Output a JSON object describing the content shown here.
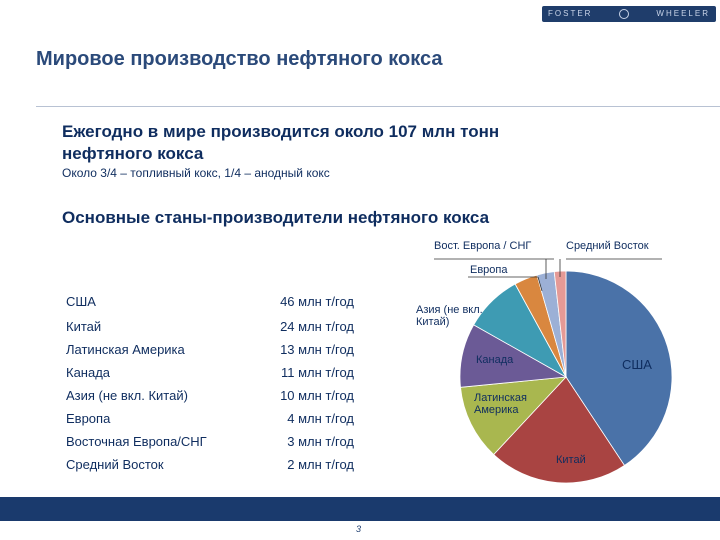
{
  "logo": {
    "left_text": "FOSTER",
    "right_text": "WHEELER"
  },
  "page": {
    "title": "Мировое производство нефтяного кокса",
    "page_number": "3"
  },
  "headline": {
    "line1": "Ежегодно в мире производится около 107 млн тонн",
    "line2": "нефтяного кокса"
  },
  "subtext": "Около 3/4 – топливный кокс, 1/4 – анодный кокс",
  "section_title": "Основные станы-производители нефтяного кокса",
  "production": [
    {
      "country": "США",
      "amount": "46 млн т/год"
    },
    {
      "country": "Китай",
      "amount": "24 млн т/год"
    },
    {
      "country": "Латинская Америка",
      "amount": "13 млн т/год"
    },
    {
      "country": "Канада",
      "amount": "11 млн т/год"
    },
    {
      "country": "Азия (не вкл. Китай)",
      "amount": "10 млн т/год"
    },
    {
      "country": "Европа",
      "amount": "4 млн т/год"
    },
    {
      "country": "Восточная Европа/СНГ",
      "amount": "3 млн т/год"
    },
    {
      "country": "Средний Восток",
      "amount": "2 млн т/год"
    }
  ],
  "chart_data": {
    "type": "pie",
    "slices": [
      {
        "label": "США",
        "value": 46,
        "color": "#4a72a8"
      },
      {
        "label": "Китай",
        "value": 24,
        "color": "#a94442"
      },
      {
        "label": "Латинская Америка",
        "label_lines": [
          "Латинская",
          "Америка"
        ],
        "value": 13,
        "color": "#a9b74f"
      },
      {
        "label": "Канада",
        "value": 11,
        "color": "#6b5a96"
      },
      {
        "label": "Азия (не вкл. Китай)",
        "label_lines": [
          "Азия (не вкл.",
          "Китай)"
        ],
        "value": 10,
        "color": "#3e9bb3"
      },
      {
        "label": "Европа",
        "value": 4,
        "color": "#d9873f"
      },
      {
        "label": "Вост. Европа / СНГ",
        "value": 3,
        "color": "#9cb0d6"
      },
      {
        "label": "Средний Восток",
        "value": 2,
        "color": "#e59a96"
      }
    ],
    "start": "12 o'clock",
    "direction": "clockwise"
  }
}
